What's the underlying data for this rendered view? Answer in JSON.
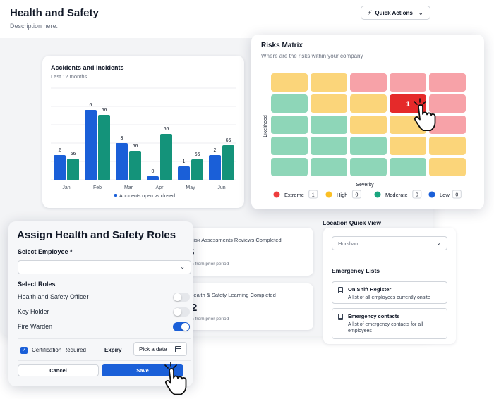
{
  "colors": {
    "blue": "#1a5fd8",
    "teal": "#14937a",
    "extreme": "#f06a6f",
    "extreme_light": "#f7a2a8",
    "high": "#fbd57a",
    "moderate": "#8ed6b8",
    "low": "#1a5fd8",
    "highlight": "#e52a2a"
  },
  "header": {
    "title": "Health and Safety",
    "description": "Description here.",
    "quick_actions_label": "Quick Actions",
    "quick_actions_icon": "bolt-icon"
  },
  "accidents": {
    "title": "Accidents and Incidents",
    "subtitle": "Last 12 months"
  },
  "chart_data": {
    "type": "bar",
    "categories": [
      "Jan",
      "Feb",
      "Mar",
      "Apr",
      "May",
      "Jun"
    ],
    "series": [
      {
        "values": [
          2,
          6,
          3,
          0,
          1,
          2
        ]
      },
      {
        "values": [
          66,
          66,
          66,
          66,
          66,
          66
        ]
      }
    ],
    "bar_heights_relative": {
      "blue": [
        0.36,
        1.0,
        0.53,
        0.06,
        0.2,
        0.36
      ],
      "teal": [
        0.31,
        0.93,
        0.42,
        0.66,
        0.3,
        0.5
      ]
    },
    "legend": "Accidents open vs closed",
    "legend_position": "bottom",
    "grid": true
  },
  "stats": [
    {
      "title": "Risk Assessments Reviews Completed",
      "value": "5",
      "note": "% from prior period"
    },
    {
      "title": "Health & Safety Learning Completed",
      "value": "2",
      "note": "% from prior period"
    }
  ],
  "location": {
    "title": "Location Quick View",
    "selected": "Horsham",
    "emergency_title": "Emergency Lists",
    "items": [
      {
        "name": "On Shift Register",
        "desc": "A list of all employees currently onsite",
        "icon": "document-icon"
      },
      {
        "name": "Emergency contacts",
        "desc": "A list of emergency contacts for all employees",
        "icon": "document-icon"
      }
    ]
  },
  "risk_matrix": {
    "title": "Risks Matrix",
    "subtitle": "Where are the risks within your company",
    "y_label": "Likelihood",
    "x_label": "Severity",
    "grid": [
      [
        "high",
        "high",
        "extreme_light",
        "extreme_light",
        "extreme_light"
      ],
      [
        "moderate",
        "high",
        "high",
        "highlight",
        "extreme_light"
      ],
      [
        "moderate",
        "moderate",
        "high",
        "high",
        "extreme_light"
      ],
      [
        "moderate",
        "moderate",
        "moderate",
        "high",
        "high"
      ],
      [
        "moderate",
        "moderate",
        "moderate",
        "moderate",
        "high"
      ]
    ],
    "highlight_value": "1",
    "legend": [
      {
        "label": "Extreme",
        "count": "1",
        "color": "#ee3d3d"
      },
      {
        "label": "High",
        "count": "0",
        "color": "#fbbf24"
      },
      {
        "label": "Moderate",
        "count": "0",
        "color": "#1aa57f"
      },
      {
        "label": "Low",
        "count": "0",
        "color": "#1a5fd8"
      }
    ]
  },
  "roles": {
    "title": "Assign Health and Safety Roles",
    "employee_label": "Select Employee *",
    "employee_value": "",
    "roles_label": "Select Roles",
    "items": [
      {
        "label": "Health and Safety Officer",
        "on": false
      },
      {
        "label": "Key Holder",
        "on": false
      },
      {
        "label": "Fire Warden",
        "on": true
      }
    ],
    "cert_label": "Certification Required",
    "expiry_label": "Expiry",
    "date_placeholder": "Pick a date",
    "cancel_label": "Cancel",
    "save_label": "Save"
  }
}
